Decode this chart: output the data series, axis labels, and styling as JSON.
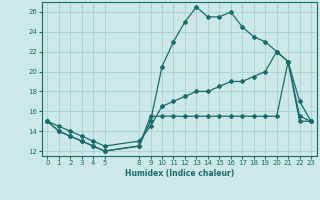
{
  "xlabel": "Humidex (Indice chaleur)",
  "bg_color": "#cce8e8",
  "grid_color": "#aad0d0",
  "line_color": "#1a6b6b",
  "xlim": [
    -0.5,
    23.5
  ],
  "ylim": [
    11.5,
    27.0
  ],
  "xticks": [
    0,
    1,
    2,
    3,
    4,
    5,
    8,
    9,
    10,
    11,
    12,
    13,
    14,
    15,
    16,
    17,
    18,
    19,
    20,
    21,
    22,
    23
  ],
  "yticks": [
    12,
    14,
    16,
    18,
    20,
    22,
    24,
    26
  ],
  "line1_x": [
    0,
    1,
    2,
    3,
    4,
    5,
    8,
    9,
    10,
    11,
    12,
    13,
    14,
    15,
    16,
    17,
    18,
    19,
    20,
    21,
    22,
    23
  ],
  "line1_y": [
    15,
    14,
    13.5,
    13,
    12.5,
    12,
    12.5,
    15,
    20.5,
    23,
    25,
    26.5,
    25.5,
    25.5,
    26,
    24.5,
    23.5,
    23,
    22,
    21,
    17,
    15
  ],
  "line2_x": [
    0,
    1,
    2,
    3,
    4,
    5,
    8,
    9,
    10,
    11,
    12,
    13,
    14,
    15,
    16,
    17,
    18,
    19,
    20,
    21,
    22,
    23
  ],
  "line2_y": [
    15,
    14.5,
    14,
    13.5,
    13,
    12.5,
    13,
    14.5,
    16.5,
    17,
    17.5,
    18,
    18,
    18.5,
    19,
    19,
    19.5,
    20,
    22,
    21,
    15,
    15
  ],
  "line3_x": [
    0,
    1,
    2,
    3,
    4,
    5,
    8,
    9,
    10,
    11,
    12,
    13,
    14,
    15,
    16,
    17,
    18,
    19,
    20,
    21,
    22,
    23
  ],
  "line3_y": [
    15,
    14,
    13.5,
    13,
    12.5,
    12,
    12.5,
    15.5,
    15.5,
    15.5,
    15.5,
    15.5,
    15.5,
    15.5,
    15.5,
    15.5,
    15.5,
    15.5,
    15.5,
    21,
    15.5,
    15
  ]
}
